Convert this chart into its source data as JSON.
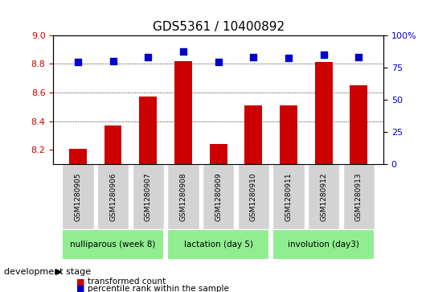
{
  "title": "GDS5361 / 10400892",
  "samples": [
    "GSM1280905",
    "GSM1280906",
    "GSM1280907",
    "GSM1280908",
    "GSM1280909",
    "GSM1280910",
    "GSM1280911",
    "GSM1280912",
    "GSM1280913"
  ],
  "transformed_counts": [
    8.21,
    8.37,
    8.57,
    8.82,
    8.24,
    8.51,
    8.51,
    8.81,
    8.65
  ],
  "percentile_ranks": [
    79,
    80,
    83,
    87,
    79,
    83,
    82,
    85,
    83
  ],
  "ylim_left": [
    8.1,
    9.0
  ],
  "ylim_right": [
    0,
    100
  ],
  "yticks_left": [
    8.2,
    8.4,
    8.6,
    8.8,
    9.0
  ],
  "yticks_right": [
    0,
    25,
    50,
    75,
    100
  ],
  "ytick_labels_right": [
    "0",
    "25",
    "50",
    "75",
    "100%"
  ],
  "grid_values": [
    8.4,
    8.6,
    8.8
  ],
  "bar_color": "#cc0000",
  "dot_color": "#0000cc",
  "bar_width": 0.5,
  "groups": [
    {
      "label": "nulliparous (week 8)",
      "start": 0,
      "end": 3,
      "color": "#90ee90"
    },
    {
      "label": "lactation (day 5)",
      "start": 3,
      "end": 6,
      "color": "#90ee90"
    },
    {
      "label": "involution (day3)",
      "start": 6,
      "end": 9,
      "color": "#90ee90"
    }
  ],
  "stage_label": "development stage",
  "legend_items": [
    {
      "label": "transformed count",
      "color": "#cc0000"
    },
    {
      "label": "percentile rank within the sample",
      "color": "#0000cc"
    }
  ],
  "sample_box_color": "#d3d3d3",
  "background_color": "#ffffff"
}
